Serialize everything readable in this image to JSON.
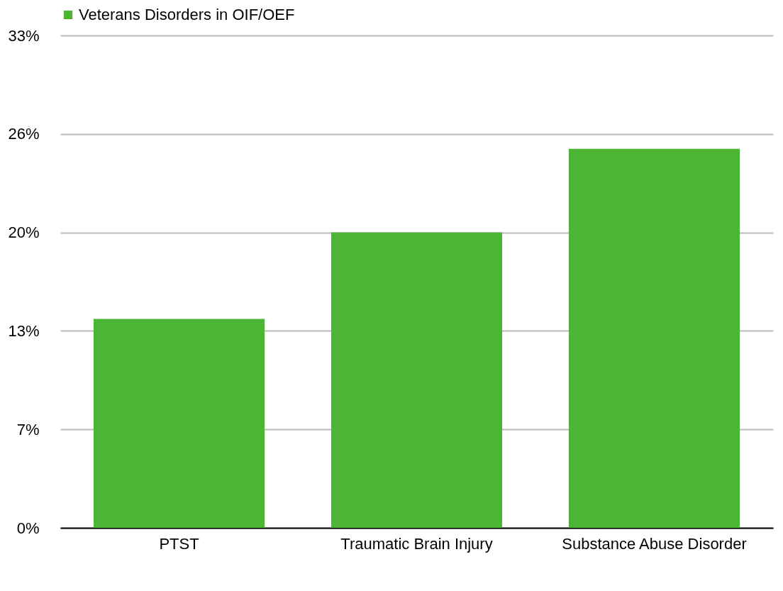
{
  "chart_data": {
    "type": "bar",
    "categories": [
      "PTST",
      "Traumatic Brain Injury",
      "Substance Abuse Disorder"
    ],
    "series": [
      {
        "name": "Veterans Disorders in OIF/OEF",
        "color": "#4cb535",
        "values": [
          14,
          19.8,
          25.4
        ]
      }
    ],
    "ylim": [
      0,
      33
    ],
    "yticks": [
      {
        "value": 0,
        "label": "0%"
      },
      {
        "value": 6.6,
        "label": "7%"
      },
      {
        "value": 13.2,
        "label": "13%"
      },
      {
        "value": 19.8,
        "label": "20%"
      },
      {
        "value": 26.4,
        "label": "26%"
      },
      {
        "value": 33,
        "label": "33%"
      }
    ],
    "grid": "y",
    "legend": "top"
  }
}
